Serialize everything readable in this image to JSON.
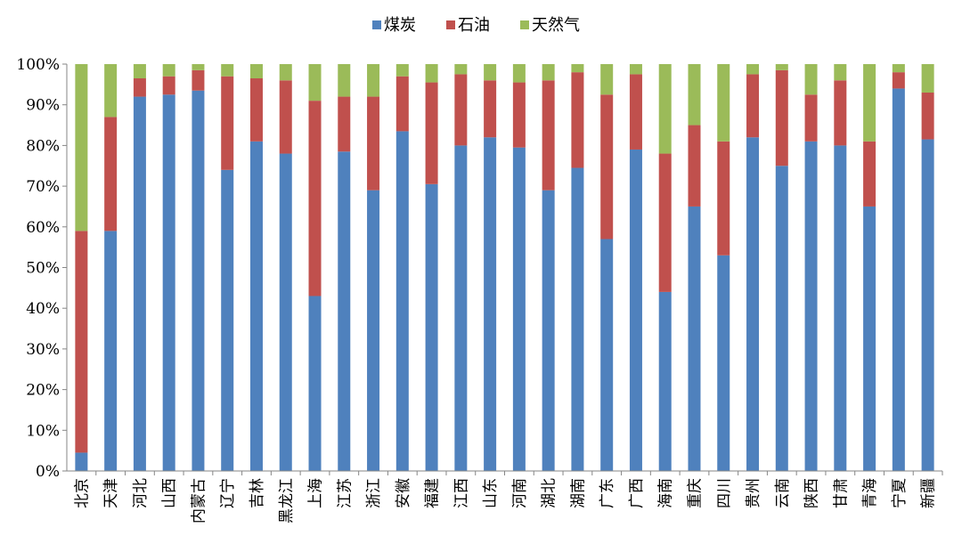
{
  "chart_data": {
    "type": "bar",
    "stacked": true,
    "categories": [
      "北京",
      "天津",
      "河北",
      "山西",
      "内蒙古",
      "辽宁",
      "吉林",
      "黑龙江",
      "上海",
      "江苏",
      "浙江",
      "安徽",
      "福建",
      "江西",
      "山东",
      "河南",
      "湖北",
      "湖南",
      "广东",
      "广西",
      "海南",
      "重庆",
      "四川",
      "贵州",
      "云南",
      "陕西",
      "甘肃",
      "青海",
      "宁夏",
      "新疆"
    ],
    "series": [
      {
        "name": "煤炭",
        "color": "#4F81BD",
        "values": [
          4.5,
          59,
          92,
          92.5,
          93.5,
          74,
          81,
          78,
          43,
          78.5,
          69,
          83.5,
          70.5,
          80,
          82,
          79.5,
          69,
          74.5,
          57,
          79,
          44,
          65,
          53,
          82,
          75,
          81,
          80,
          65,
          94,
          81.5
        ]
      },
      {
        "name": "石油",
        "color": "#C0504D",
        "values": [
          54.5,
          28,
          4.5,
          4.5,
          5,
          23,
          15.5,
          18,
          48,
          13.5,
          23,
          13.5,
          25,
          17.5,
          14,
          16,
          27,
          23.5,
          35.5,
          18.5,
          34,
          20,
          28,
          15.5,
          23.5,
          11.5,
          16,
          16,
          4,
          11.5
        ]
      },
      {
        "name": "天然气",
        "color": "#9BBB59",
        "values": [
          41,
          13,
          3.5,
          3,
          1.5,
          3,
          3.5,
          4,
          9,
          8,
          8,
          3,
          4.5,
          2.5,
          4,
          4.5,
          4,
          2,
          7.5,
          2.5,
          22,
          15,
          19,
          2.5,
          1.5,
          7.5,
          4,
          19,
          2,
          7
        ]
      }
    ],
    "yticks": [
      "0%",
      "10%",
      "20%",
      "30%",
      "40%",
      "50%",
      "60%",
      "70%",
      "80%",
      "90%",
      "100%"
    ],
    "ylim": [
      0,
      100
    ],
    "legend_position": "top-center",
    "grid": false
  }
}
